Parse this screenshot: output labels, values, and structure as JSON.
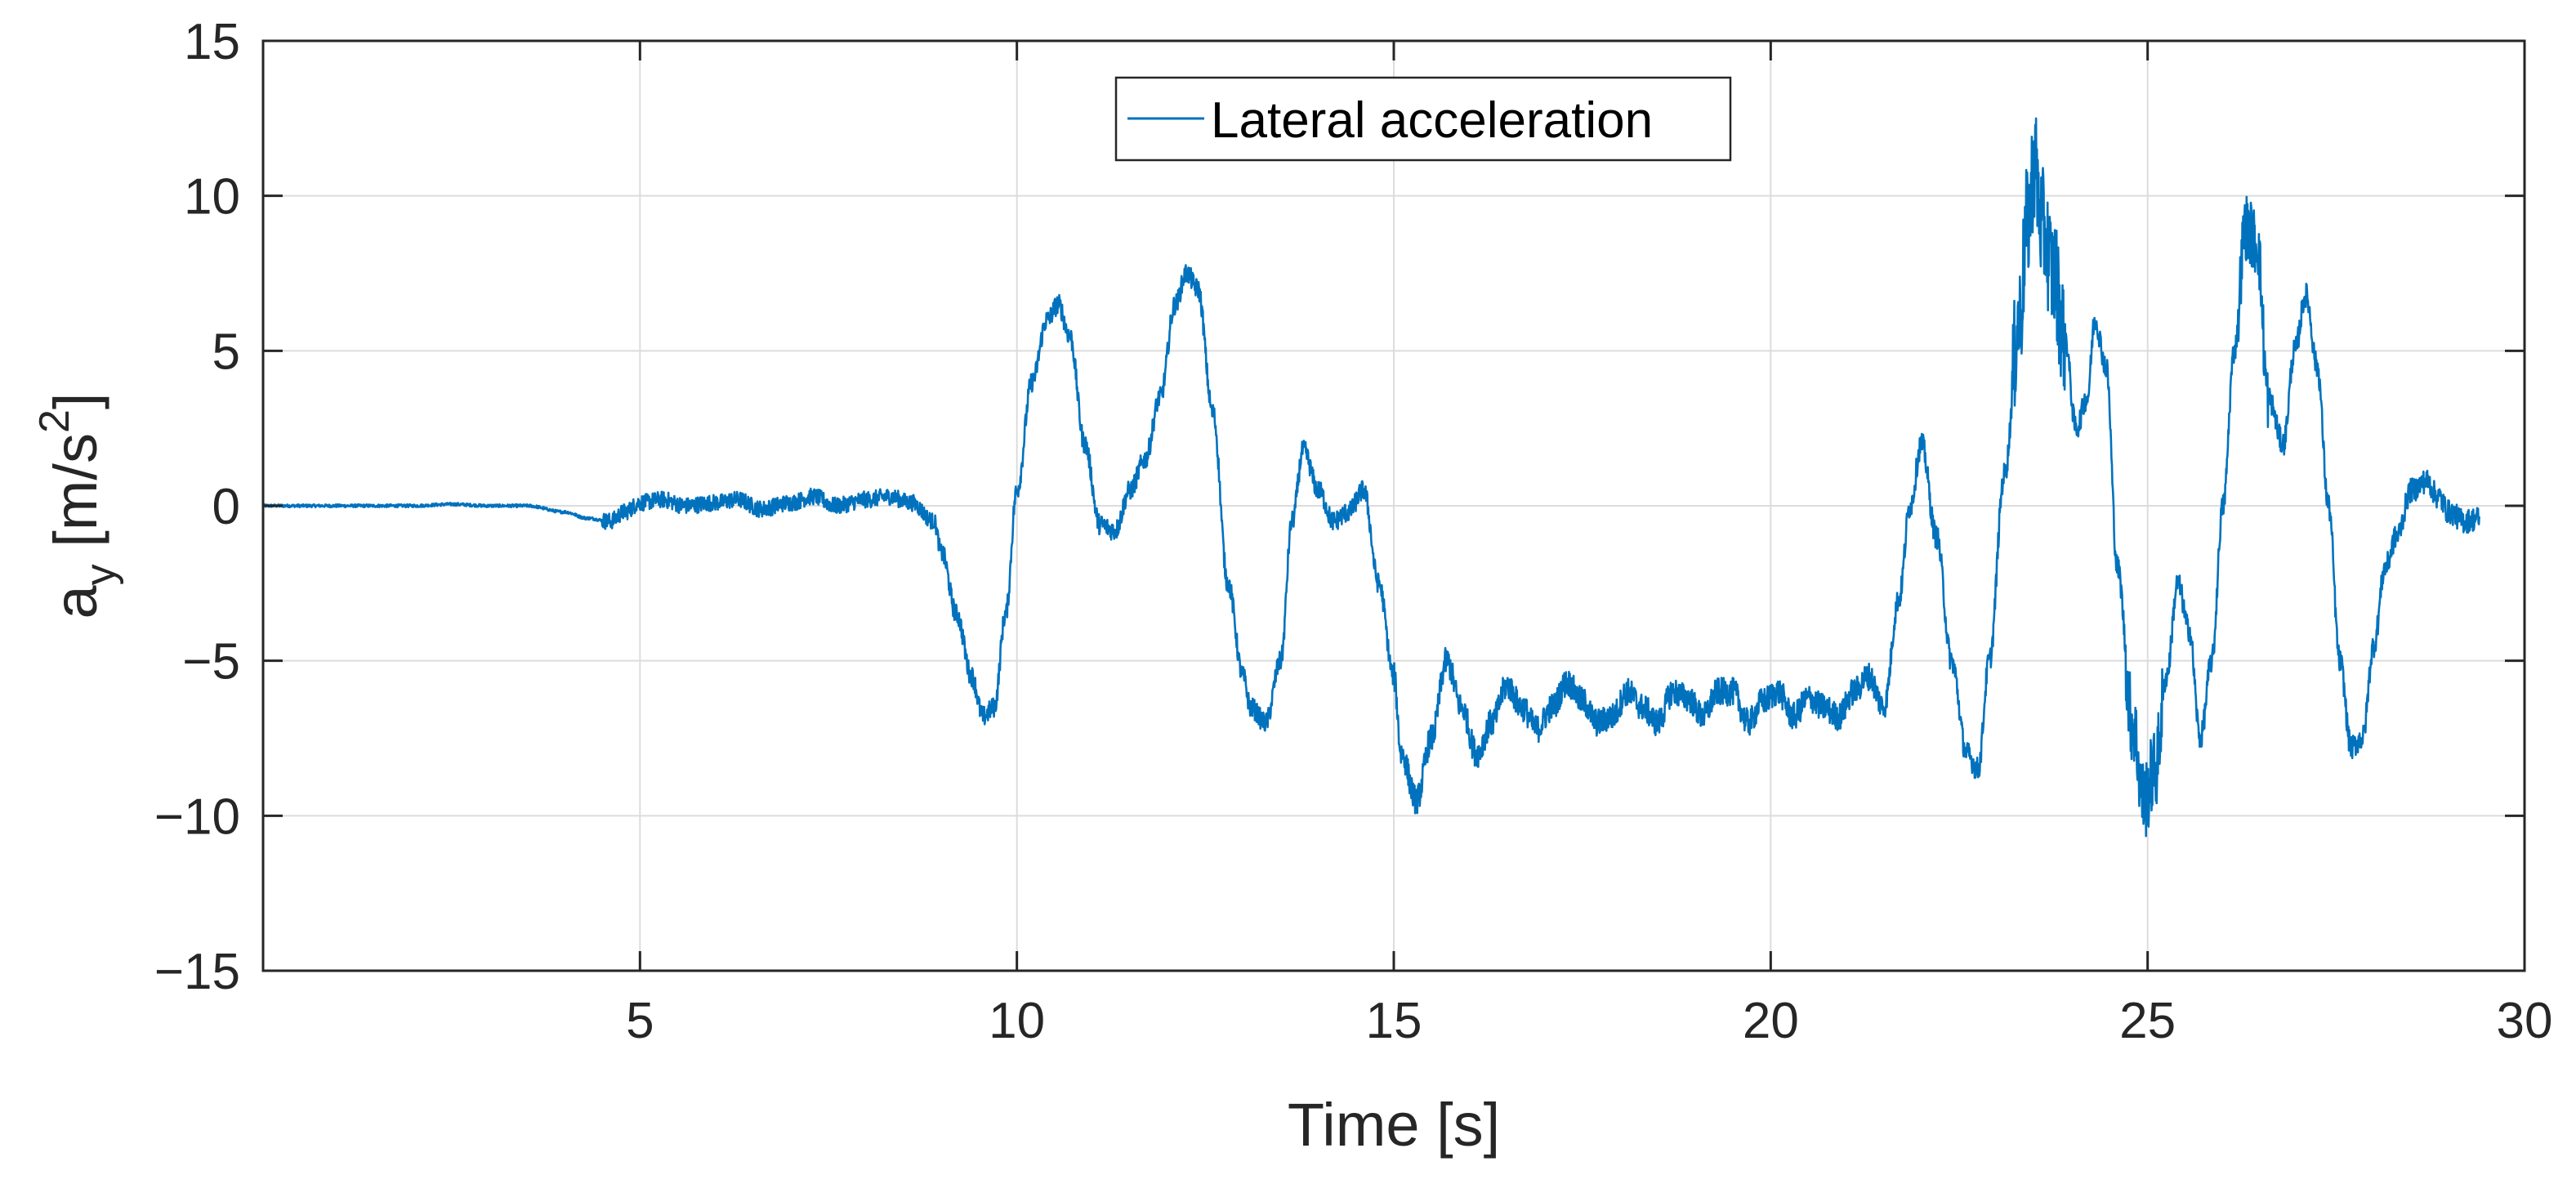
{
  "chart_data": {
    "type": "line",
    "title": "",
    "xlabel": "Time [s]",
    "ylabel_main": "a",
    "ylabel_sub": "y",
    "ylabel_unit_pre": " [m/s",
    "ylabel_unit_sup": "2",
    "ylabel_unit_post": "]",
    "xlim": [
      0,
      30
    ],
    "ylim": [
      -15,
      15
    ],
    "xticks": [
      5,
      10,
      15,
      20,
      25,
      30
    ],
    "xtick_labels": [
      "5",
      "10",
      "15",
      "20",
      "25",
      "30"
    ],
    "yticks": [
      15,
      10,
      5,
      0,
      -5,
      -10,
      -15
    ],
    "ytick_labels": [
      "15",
      "10",
      "5",
      "0",
      "−5",
      "−10",
      "−15"
    ],
    "grid": true,
    "legend_position": "top-center",
    "series": [
      {
        "name": "Lateral acceleration",
        "color": "#0072BD",
        "x": [
          0,
          0.5,
          1,
          1.5,
          2,
          2.5,
          3,
          3.5,
          4,
          4.3,
          4.6,
          4.8,
          5,
          5.3,
          5.6,
          6,
          6.3,
          6.6,
          7,
          7.3,
          7.6,
          8,
          8.3,
          8.6,
          8.9,
          9.0,
          9.2,
          9.4,
          9.55,
          9.7,
          9.85,
          10.0,
          10.2,
          10.4,
          10.55,
          10.7,
          10.9,
          11.1,
          11.3,
          11.5,
          11.7,
          11.9,
          12.1,
          12.25,
          12.4,
          12.6,
          12.8,
          13.0,
          13.1,
          13.3,
          13.5,
          13.65,
          13.8,
          14.0,
          14.2,
          14.4,
          14.6,
          14.8,
          15.0,
          15.1,
          15.3,
          15.5,
          15.7,
          15.9,
          16.1,
          16.3,
          16.5,
          16.7,
          16.9,
          17.1,
          17.3,
          17.5,
          17.7,
          17.9,
          18.1,
          18.3,
          18.5,
          18.7,
          18.9,
          19.1,
          19.3,
          19.5,
          19.7,
          19.9,
          20.1,
          20.3,
          20.5,
          20.7,
          20.9,
          21.1,
          21.3,
          21.5,
          21.7,
          21.85,
          22.0,
          22.2,
          22.4,
          22.6,
          22.75,
          22.9,
          23.1,
          23.3,
          23.4,
          23.5,
          23.6,
          23.75,
          23.9,
          24.05,
          24.2,
          24.3,
          24.45,
          24.6,
          24.8,
          24.95,
          25.1,
          25.25,
          25.4,
          25.55,
          25.7,
          25.85,
          26.0,
          26.15,
          26.3,
          26.45,
          26.6,
          26.8,
          26.95,
          27.1,
          27.25,
          27.4,
          27.55,
          27.7,
          27.85,
          28.0,
          28.15,
          28.3,
          28.5,
          28.7,
          28.85,
          29.0,
          29.2,
          29.4
        ],
        "values": [
          0,
          0,
          0,
          0,
          0,
          0.05,
          0,
          0,
          -0.2,
          -0.4,
          -0.5,
          -0.2,
          0.1,
          0.2,
          0,
          0.1,
          0.2,
          -0.1,
          0.1,
          0.3,
          0,
          0.2,
          0.3,
          0.1,
          -0.5,
          -1.5,
          -3.5,
          -5.5,
          -6.8,
          -6.5,
          -3.5,
          0.5,
          4.0,
          6.0,
          6.5,
          5.5,
          2.0,
          -0.6,
          -0.8,
          0.5,
          1.5,
          3.5,
          6.5,
          7.5,
          7.0,
          3.0,
          -2.5,
          -5.5,
          -6.5,
          -7.0,
          -5.0,
          -0.5,
          1.8,
          0.5,
          -0.5,
          -0.2,
          0.5,
          -2.5,
          -5.5,
          -8.0,
          -9.5,
          -7.5,
          -5.0,
          -6.5,
          -8.0,
          -7.0,
          -5.8,
          -6.5,
          -7.2,
          -6.5,
          -5.7,
          -6.3,
          -7.0,
          -6.8,
          -6.0,
          -6.5,
          -7.0,
          -6.0,
          -6.2,
          -6.8,
          -6.0,
          -6.0,
          -7.0,
          -6.3,
          -6.0,
          -6.8,
          -6.2,
          -6.5,
          -6.8,
          -6.0,
          -5.5,
          -6.5,
          -3.0,
          0.0,
          2.0,
          -1.0,
          -5.0,
          -8.0,
          -8.5,
          -5.0,
          1.0,
          6.0,
          9.0,
          11.0,
          9.0,
          7.5,
          5.5,
          2.5,
          3.5,
          6.0,
          4.5,
          -2.0,
          -7.0,
          -9.5,
          -8.5,
          -5.5,
          -2.5,
          -4.0,
          -7.5,
          -5.0,
          0.0,
          5.0,
          9.0,
          8.5,
          3.5,
          2.0,
          5.0,
          6.8,
          4.5,
          0.0,
          -5.0,
          -7.8,
          -7.5,
          -4.5,
          -2.0,
          -1.0,
          0.5,
          0.8,
          0.3,
          -0.2,
          -0.5,
          -0.4
        ]
      }
    ]
  }
}
